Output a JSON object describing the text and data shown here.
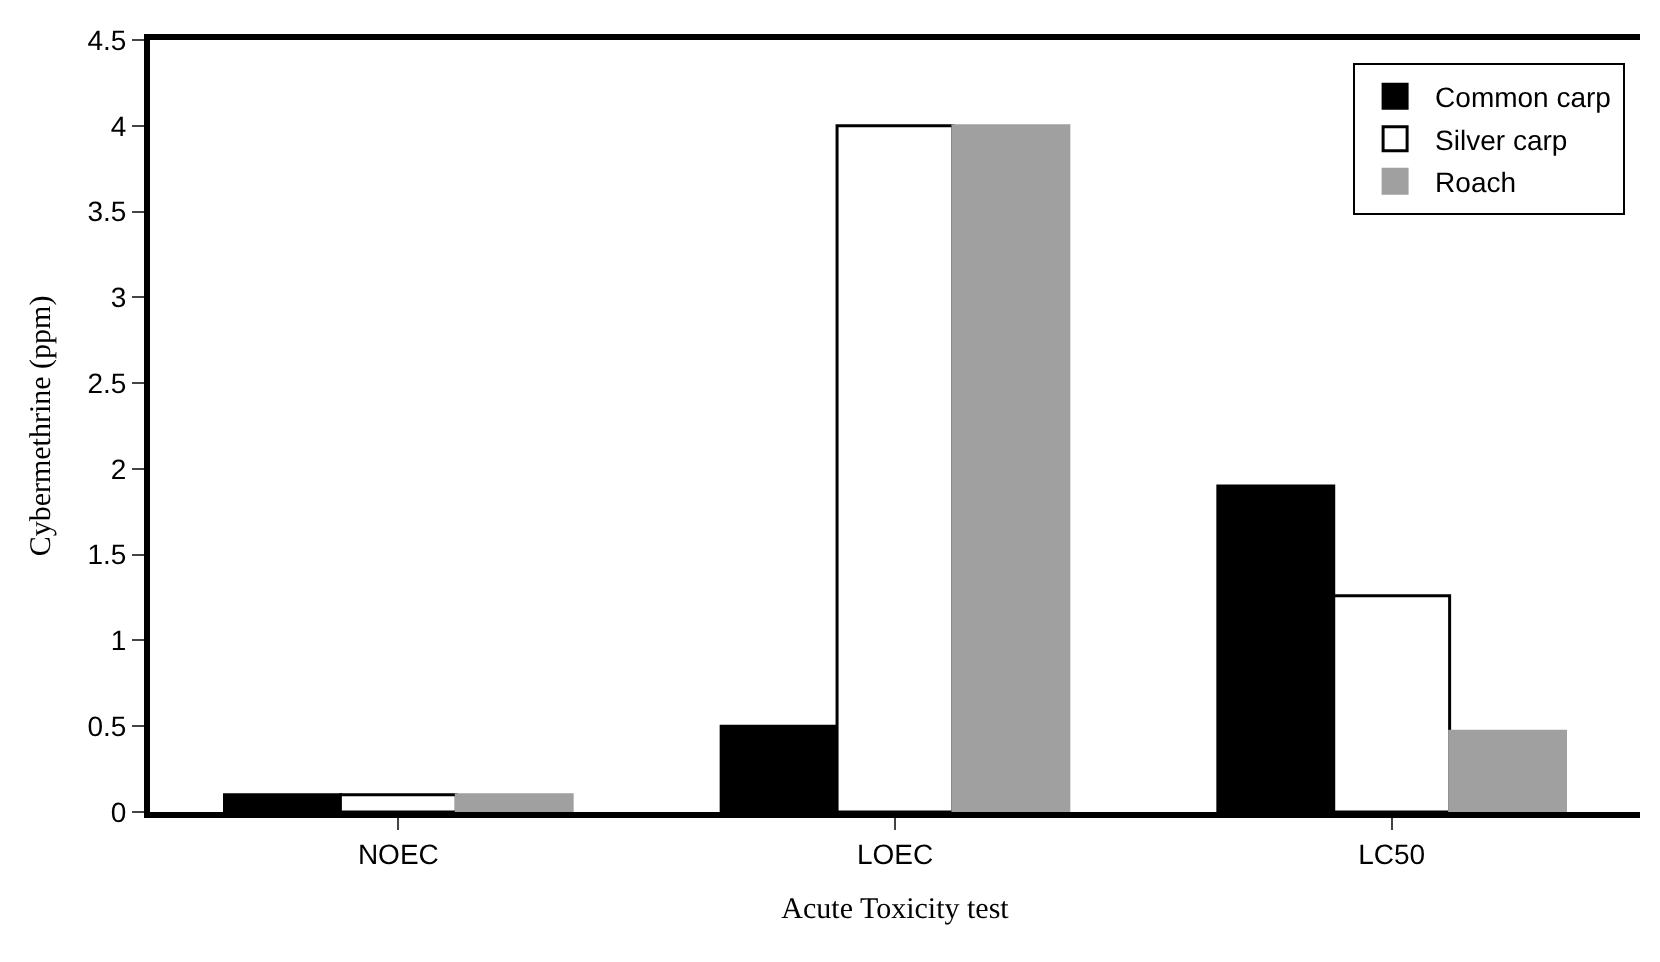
{
  "chart_data": {
    "type": "bar",
    "xlabel": "Acute Toxicity test",
    "ylabel": "Cybermethrine (ppm)",
    "categories": [
      "NOEC",
      "LOEC",
      "LC50"
    ],
    "series": [
      {
        "name": "Common carp",
        "color": "#000000",
        "values": [
          0.1,
          0.5,
          1.9
        ]
      },
      {
        "name": "Silver carp",
        "color": "#ffffff",
        "values": [
          0.1,
          4,
          1.26
        ]
      },
      {
        "name": "Roach",
        "color": "#a0a0a0",
        "values": [
          0.1,
          4,
          0.47
        ]
      }
    ],
    "ylim": [
      0,
      4.5
    ],
    "yticks": [
      0,
      0.5,
      1,
      1.5,
      2,
      2.5,
      3,
      3.5,
      4,
      4.5
    ],
    "legend": "top right"
  }
}
